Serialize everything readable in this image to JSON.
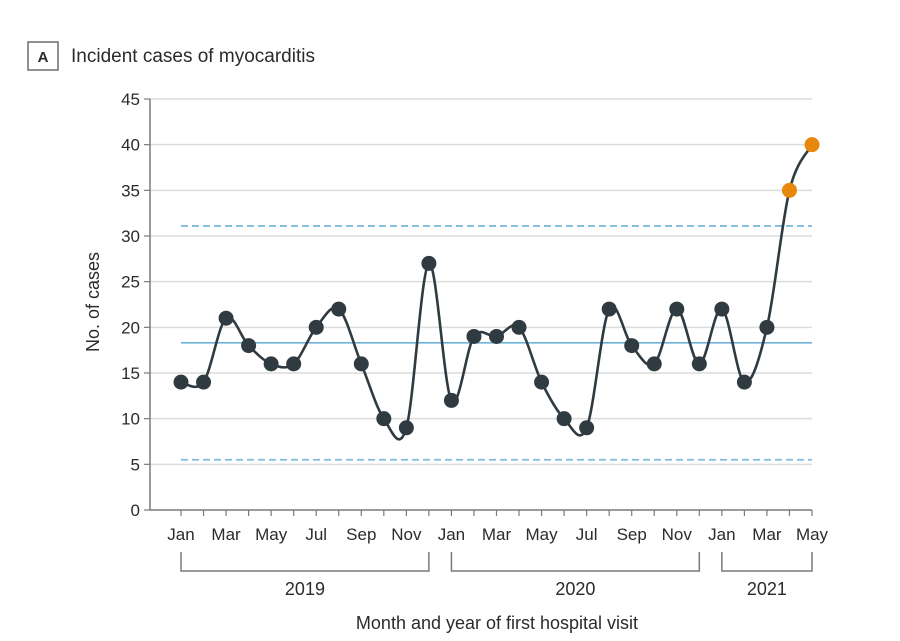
{
  "panel": {
    "letter": "A",
    "title": "Incident cases of myocarditis"
  },
  "chart_data": {
    "type": "line",
    "title": "Incident cases of myocarditis",
    "xlabel": "Month and year of first hospital visit",
    "ylabel": "No. of cases",
    "ylim": [
      0,
      45
    ],
    "yticks": [
      0,
      5,
      10,
      15,
      20,
      25,
      30,
      35,
      40,
      45
    ],
    "grid": true,
    "x": [
      "Jan 2019",
      "Feb 2019",
      "Mar 2019",
      "Apr 2019",
      "May 2019",
      "Jun 2019",
      "Jul 2019",
      "Aug 2019",
      "Sep 2019",
      "Oct 2019",
      "Nov 2019",
      "Dec 2019",
      "Jan 2020",
      "Feb 2020",
      "Mar 2020",
      "Apr 2020",
      "May 2020",
      "Jun 2020",
      "Jul 2020",
      "Aug 2020",
      "Sep 2020",
      "Oct 2020",
      "Nov 2020",
      "Dec 2020",
      "Jan 2021",
      "Feb 2021",
      "Mar 2021",
      "Apr 2021",
      "May 2021"
    ],
    "xtick_labels": [
      "Jan",
      "Mar",
      "May",
      "Jul",
      "Sep",
      "Nov",
      "Jan",
      "Mar",
      "May",
      "Jul",
      "Sep",
      "Nov",
      "Jan",
      "Mar",
      "May"
    ],
    "xtick_label_indices": [
      0,
      2,
      4,
      6,
      8,
      10,
      12,
      14,
      16,
      18,
      20,
      22,
      24,
      26,
      28
    ],
    "year_groups": [
      {
        "label": "2019",
        "start": 0,
        "end": 11
      },
      {
        "label": "2020",
        "start": 12,
        "end": 23
      },
      {
        "label": "2021",
        "start": 24,
        "end": 28
      }
    ],
    "series": [
      {
        "name": "Incident cases",
        "values": [
          14,
          14,
          21,
          18,
          16,
          16,
          20,
          22,
          16,
          10,
          9,
          27,
          12,
          19,
          19,
          20,
          14,
          10,
          9,
          22,
          18,
          16,
          22,
          16,
          22,
          14,
          20,
          35,
          40
        ],
        "color": "#2f3b40",
        "highlight_indices": [
          27,
          28
        ],
        "highlight_color": "#e8870e"
      }
    ],
    "reference_lines": [
      {
        "name": "mean",
        "value": 18.3,
        "style": "solid",
        "color": "#6fb3d8"
      },
      {
        "name": "upper control limit",
        "value": 31.1,
        "style": "dashed",
        "color": "#7fbcdd"
      },
      {
        "name": "lower control limit",
        "value": 5.5,
        "style": "dashed",
        "color": "#7fbcdd"
      }
    ]
  }
}
